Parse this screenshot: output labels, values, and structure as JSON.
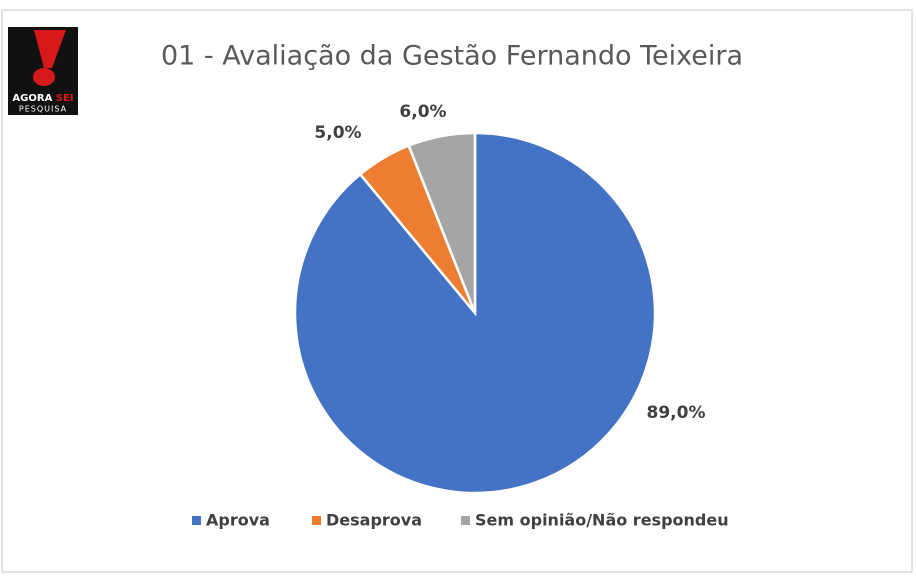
{
  "chart_data": {
    "type": "pie",
    "title": "01 - Avaliação da Gestão Fernando Teixeira",
    "logo_text": [
      "AGORA",
      "SEI"
    ],
    "logo_subtext": "PESQUISA",
    "categories": [
      "Aprova",
      "Desaprova",
      "Sem opinião/Não respondeu"
    ],
    "values": [
      89.0,
      5.0,
      6.0
    ],
    "value_labels": [
      "89,0%",
      "5,0%",
      "6,0%"
    ],
    "colors": [
      "#4472c4",
      "#ed7d31",
      "#a5a5a5"
    ],
    "legend": "bottom"
  }
}
